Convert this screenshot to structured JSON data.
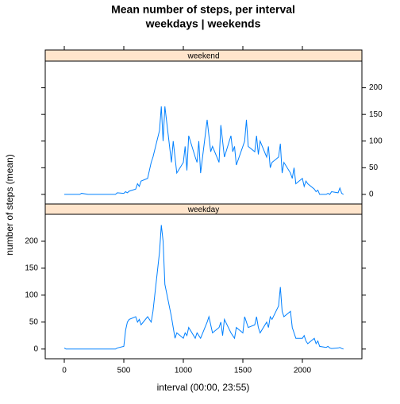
{
  "chart_data": {
    "type": "line",
    "title": "Mean number of steps, per interval",
    "subtitle": "weekdays | weekends",
    "xlabel": "interval (00:00, 23:55)",
    "ylabel": "number of steps (mean)",
    "x": [
      0,
      15,
      30,
      45,
      100,
      115,
      130,
      145,
      200,
      215,
      230,
      245,
      300,
      315,
      330,
      345,
      400,
      415,
      430,
      445,
      500,
      515,
      530,
      545,
      600,
      615,
      630,
      645,
      700,
      715,
      730,
      745,
      800,
      815,
      830,
      845,
      900,
      915,
      930,
      945,
      1000,
      1015,
      1030,
      1045,
      1100,
      1115,
      1130,
      1145,
      1200,
      1215,
      1230,
      1245,
      1300,
      1315,
      1330,
      1345,
      1400,
      1415,
      1430,
      1445,
      1500,
      1515,
      1530,
      1545,
      1600,
      1615,
      1630,
      1645,
      1700,
      1715,
      1730,
      1745,
      1800,
      1815,
      1830,
      1845,
      1900,
      1915,
      1930,
      1945,
      2000,
      2015,
      2030,
      2045,
      2100,
      2115,
      2130,
      2145,
      2200,
      2215,
      2230,
      2245,
      2300,
      2315,
      2330,
      2345
    ],
    "series": [
      {
        "name": "weekend",
        "color": "#0080ff",
        "values": [
          0,
          0,
          0,
          0,
          0,
          0,
          0,
          2,
          0,
          0,
          0,
          0,
          0,
          0,
          0,
          0,
          0,
          0,
          0,
          3,
          2,
          5,
          3,
          6,
          10,
          20,
          15,
          25,
          30,
          45,
          60,
          70,
          120,
          165,
          100,
          165,
          60,
          100,
          70,
          40,
          60,
          90,
          45,
          110,
          70,
          60,
          100,
          40,
          140,
          110,
          80,
          90,
          60,
          130,
          100,
          70,
          110,
          80,
          90,
          55,
          90,
          100,
          140,
          90,
          80,
          110,
          75,
          100,
          70,
          90,
          50,
          60,
          70,
          95,
          40,
          60,
          40,
          30,
          50,
          20,
          30,
          15,
          25,
          20,
          10,
          5,
          8,
          0,
          0,
          2,
          0,
          5,
          3,
          12,
          2,
          0
        ]
      },
      {
        "name": "weekday",
        "color": "#0080ff",
        "values": [
          2,
          0,
          0,
          0,
          0,
          0,
          0,
          0,
          0,
          0,
          0,
          0,
          0,
          0,
          0,
          0,
          0,
          0,
          0,
          2,
          5,
          35,
          50,
          55,
          60,
          50,
          55,
          45,
          60,
          55,
          50,
          70,
          180,
          230,
          200,
          120,
          60,
          40,
          20,
          30,
          20,
          30,
          25,
          40,
          20,
          30,
          25,
          20,
          50,
          60,
          45,
          30,
          40,
          50,
          25,
          55,
          30,
          25,
          20,
          40,
          30,
          60,
          50,
          40,
          45,
          60,
          40,
          30,
          50,
          40,
          60,
          55,
          80,
          115,
          70,
          60,
          70,
          40,
          30,
          20,
          20,
          25,
          15,
          10,
          20,
          10,
          15,
          5,
          3,
          5,
          2,
          1,
          2,
          3,
          1,
          0
        ]
      }
    ],
    "xlim": [
      -160,
      2500
    ],
    "xticks": [
      0,
      500,
      1000,
      1500,
      2000
    ],
    "ylim": [
      -18,
      250
    ],
    "yticks": [
      0,
      50,
      100,
      150,
      200
    ],
    "strip_color": "#ffe5cc"
  }
}
